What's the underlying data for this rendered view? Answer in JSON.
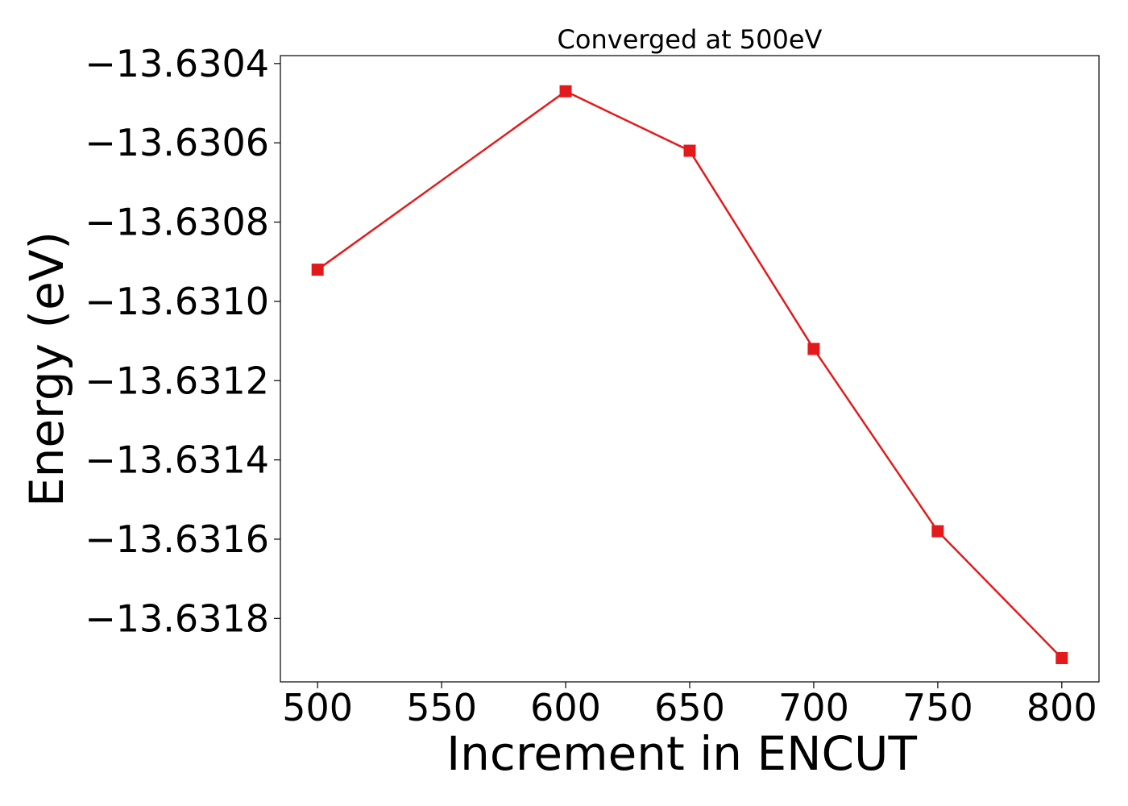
{
  "chart_data": {
    "type": "line",
    "title": "Converged at 500eV",
    "xlabel": "Increment in ENCUT",
    "ylabel": "Energy (eV)",
    "x": [
      500,
      600,
      650,
      700,
      750,
      800
    ],
    "series": [
      {
        "values": [
          -13.63092,
          -13.63047,
          -13.63062,
          -13.63112,
          -13.63158,
          -13.6319
        ],
        "color": "#e31a1c",
        "marker": "square"
      }
    ],
    "xlim": [
      485,
      815
    ],
    "ylim": [
      -13.63196,
      -13.63038
    ],
    "xticks": [
      500,
      550,
      600,
      650,
      700,
      750,
      800
    ],
    "xtick_labels": [
      "500",
      "550",
      "600",
      "650",
      "700",
      "750",
      "800"
    ],
    "yticks": [
      -13.6304,
      -13.6306,
      -13.6308,
      -13.631,
      -13.6312,
      -13.6314,
      -13.6316,
      -13.6318
    ],
    "ytick_labels": [
      "−13.6304",
      "−13.6306",
      "−13.6308",
      "−13.6310",
      "−13.6312",
      "−13.6314",
      "−13.6316",
      "−13.6318"
    ],
    "grid": false,
    "legend": "none"
  }
}
